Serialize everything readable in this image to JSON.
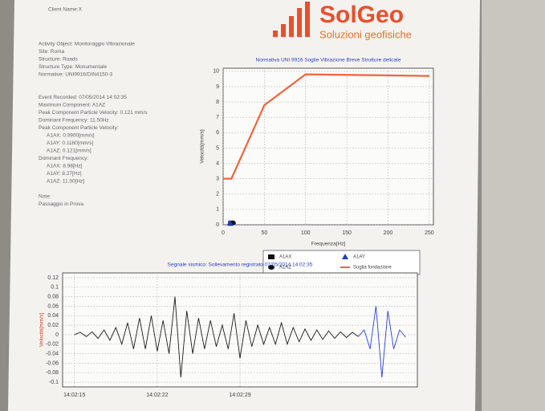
{
  "header": {
    "client": "Client Name:X",
    "logo_name": "SolGeo",
    "logo_tagline": "Soluzioni geofisiche"
  },
  "info": [
    "Activity Object: Monitoraggio Vibrazionale",
    "Site: Roma",
    "Structure: Roads",
    "Structure Type: Monumentale",
    "Normative: UNI9916/DIN4150-3",
    "Event Recorded: 07/05/2014 14:02:35",
    "Maximum Component: A1AZ",
    "Peak Component Particle Velocity: 0.121 mm/s",
    "Dominant Frequency: 11.50Hz",
    "Peak Component Particle Velocity:",
    "A1AX: 0.0900[mm/s]",
    "A1AY: 0.1160[mm/s]",
    "A1AZ: 0.121[mm/s]",
    "Dominant Frequency:",
    "A1AX: 8.98[Hz]",
    "A1AY: 8.27[Hz]",
    "A1AZ: 11.50[Hz]",
    "Note:",
    "Passaggio in Prova"
  ],
  "chart_data": [
    {
      "type": "line",
      "title": "Normativa UNI 9916 Soglie Vibrazione Breve Strutture delicate",
      "xlabel": "Frequenza[Hz]",
      "ylabel": "Velocità[mm/s]",
      "xlim": [
        0,
        255
      ],
      "ylim": [
        0,
        10.2
      ],
      "xticks": [
        0,
        50,
        100,
        150,
        200,
        250
      ],
      "yticks": [
        0,
        1,
        2,
        3,
        4,
        5,
        6,
        7,
        8,
        9,
        10
      ],
      "grid": true,
      "series": [
        {
          "name": "A1AX",
          "kind": "scatter",
          "marker": "square",
          "color": "#111111",
          "x": [
            8.98
          ],
          "values": [
            0.09
          ]
        },
        {
          "name": "A1AZ",
          "kind": "scatter",
          "marker": "circle",
          "color": "#111111",
          "x": [
            11.5
          ],
          "values": [
            0.121
          ]
        },
        {
          "name": "A1AY",
          "kind": "scatter",
          "marker": "triangle",
          "color": "#1a3fc9",
          "x": [
            8.27
          ],
          "values": [
            0.116
          ]
        },
        {
          "name": "Soglia fondazione",
          "kind": "line",
          "color": "#f2643a",
          "x": [
            0,
            10,
            50,
            100,
            250
          ],
          "values": [
            3,
            3,
            7.8,
            9.8,
            9.7
          ]
        }
      ]
    },
    {
      "type": "line",
      "title": "Segnale sismico: Sollevamento registrato 07/05/2014 14:02:35",
      "ylabel": "Velocità[mm/s]",
      "xlim": [
        -1,
        29
      ],
      "ylim": [
        -0.11,
        0.13
      ],
      "grid": true,
      "xticks": [
        {
          "value": 0,
          "label": "14:02:15"
        },
        {
          "value": 7,
          "label": "14:02:22"
        },
        {
          "value": 14,
          "label": "14:02:29"
        }
      ],
      "yticks": [
        0.12,
        0.1,
        0.08,
        0.06,
        0.04,
        0.02,
        0,
        -0.02,
        -0.04,
        -0.06,
        -0.08,
        -0.1
      ],
      "x": [
        0,
        0.5,
        1,
        1.5,
        2,
        2.5,
        3,
        3.5,
        4,
        4.5,
        5,
        5.5,
        6,
        6.5,
        7,
        7.5,
        8,
        8.5,
        9,
        9.5,
        10,
        10.5,
        11,
        11.5,
        12,
        12.5,
        13,
        13.5,
        14,
        14.5,
        15,
        15.5,
        16,
        16.5,
        17,
        17.5,
        18,
        18.5,
        19,
        19.5,
        20,
        20.5,
        21,
        21.5,
        22,
        22.5,
        23,
        23.5,
        24,
        24.5,
        25,
        25.5,
        26,
        26.5,
        27,
        27.5,
        28
      ],
      "series": [
        {
          "kind": "line",
          "color": "#1b1b1b",
          "values": [
            0,
            0.005,
            -0.004,
            0.006,
            -0.008,
            0.01,
            -0.012,
            0.015,
            -0.02,
            0.025,
            -0.03,
            0.035,
            -0.03,
            0.04,
            -0.035,
            0.03,
            -0.04,
            0.08,
            -0.09,
            0.05,
            -0.04,
            0.035,
            -0.03,
            0.03,
            -0.025,
            0.02,
            -0.03,
            0.045,
            -0.05,
            0.03,
            -0.025,
            0.02,
            -0.02,
            0.015,
            -0.02,
            0.025,
            -0.02,
            0.015,
            -0.015,
            0.012,
            -0.012,
            0.01,
            -0.01,
            0.008,
            -0.008,
            0.006,
            -0.006,
            0.005,
            -0.004,
            null,
            null,
            null,
            null,
            null,
            null,
            null,
            null
          ]
        },
        {
          "kind": "line",
          "color": "#2a3fe0",
          "values": [
            null,
            null,
            null,
            null,
            null,
            null,
            null,
            null,
            null,
            null,
            null,
            null,
            null,
            null,
            null,
            null,
            null,
            null,
            null,
            null,
            null,
            null,
            null,
            null,
            null,
            null,
            null,
            null,
            null,
            null,
            null,
            null,
            null,
            null,
            null,
            null,
            null,
            null,
            null,
            null,
            null,
            null,
            null,
            null,
            null,
            null,
            null,
            null,
            -0.004,
            0.01,
            -0.03,
            0.06,
            -0.09,
            0.05,
            -0.03,
            0.01,
            -0.005
          ]
        }
      ]
    }
  ]
}
